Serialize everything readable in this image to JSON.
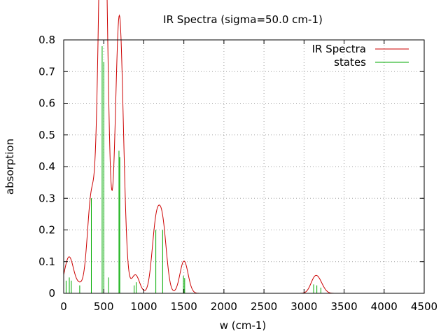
{
  "chart_data": {
    "type": "line",
    "title": "IR Spectra (sigma=50.0 cm-1)",
    "xlabel": "w (cm-1)",
    "ylabel": "absorption",
    "xlim": [
      0,
      4500
    ],
    "ylim": [
      0,
      0.8
    ],
    "x_ticks": [
      "0",
      "500",
      "1000",
      "1500",
      "2000",
      "2500",
      "3000",
      "3500",
      "4000",
      "4500"
    ],
    "y_ticks": [
      "0",
      "0.1",
      "0.2",
      "0.3",
      "0.4",
      "0.5",
      "0.6",
      "0.7",
      "0.8"
    ],
    "grid": true,
    "legend_position": "top-right",
    "sigma": 50.0,
    "series": [
      {
        "name": "IR Spectra",
        "color": "#cc0000",
        "kind": "broadened-curve"
      },
      {
        "name": "states",
        "color": "#00aa00",
        "kind": "sticks"
      }
    ],
    "states": [
      {
        "x": 30,
        "y": 0.04
      },
      {
        "x": 70,
        "y": 0.05
      },
      {
        "x": 95,
        "y": 0.04
      },
      {
        "x": 200,
        "y": 0.025
      },
      {
        "x": 345,
        "y": 0.3
      },
      {
        "x": 480,
        "y": 0.78
      },
      {
        "x": 500,
        "y": 0.73
      },
      {
        "x": 560,
        "y": 0.05
      },
      {
        "x": 690,
        "y": 0.45
      },
      {
        "x": 700,
        "y": 0.43
      },
      {
        "x": 880,
        "y": 0.025
      },
      {
        "x": 905,
        "y": 0.035
      },
      {
        "x": 1150,
        "y": 0.2
      },
      {
        "x": 1235,
        "y": 0.2
      },
      {
        "x": 1495,
        "y": 0.055
      },
      {
        "x": 1510,
        "y": 0.048
      },
      {
        "x": 3120,
        "y": 0.028
      },
      {
        "x": 3160,
        "y": 0.025
      },
      {
        "x": 3210,
        "y": 0.018
      }
    ]
  }
}
